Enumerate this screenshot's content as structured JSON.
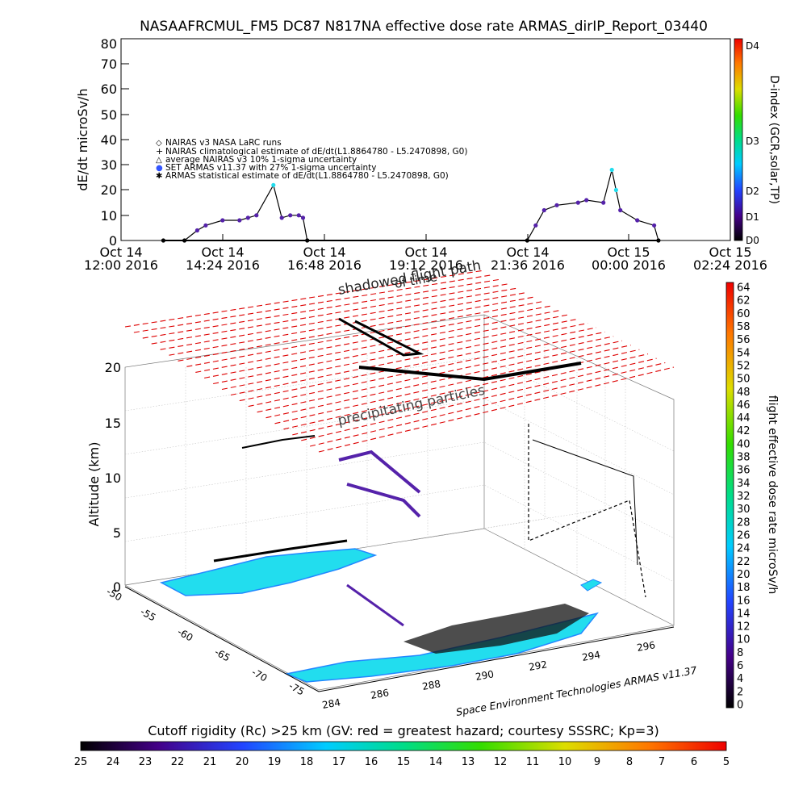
{
  "chart_data": [
    {
      "type": "line",
      "title": "NASAAFRCMUL_FM5 DC87 N817NA effective dose rate ARMAS_dirIP_Report_03440",
      "ylabel": "dE/dt microSv/h",
      "ylim": [
        0,
        80
      ],
      "y_ticks": [
        "0",
        "10",
        "20",
        "30",
        "40",
        "50",
        "60",
        "70",
        "80"
      ],
      "x_ticks": [
        {
          "l1": "Oct 14",
          "l2": "12:00 2016"
        },
        {
          "l1": "Oct 14",
          "l2": "14:24 2016"
        },
        {
          "l1": "Oct 14",
          "l2": "16:48 2016"
        },
        {
          "l1": "Oct 14",
          "l2": "19:12 2016"
        },
        {
          "l1": "Oct 14",
          "l2": "21:36 2016"
        },
        {
          "l1": "Oct 15",
          "l2": "00:00 2016"
        },
        {
          "l1": "Oct 15",
          "l2": "02:24 2016"
        }
      ],
      "legend": [
        {
          "symbol": "◇",
          "text": "NAIRAS v3 NASA LaRC runs",
          "color": "#000000"
        },
        {
          "symbol": "+",
          "text": "NAIRAS climatological estimate of dE/dt(L1.8864780 - L5.2470898, G0)",
          "color": "#000000"
        },
        {
          "symbol": "△",
          "text": "average NAIRAS v3 10% 1-sigma uncertainty",
          "color": "#000000"
        },
        {
          "symbol": "●",
          "text": "SET ARMAS v11.37 with 27% 1-sigma uncertainty",
          "color": "#3355ff"
        },
        {
          "symbol": "✱",
          "text": "ARMAS statistical estimate of dE/dt(L1.8864780 - L5.2470898, G0)",
          "color": "#000000"
        }
      ],
      "right_axis": {
        "label": "D-index (GCR,solar,TP)",
        "ticks": [
          "D0",
          "D1",
          "D2",
          "D3",
          "D4"
        ]
      },
      "series": [
        {
          "name": "ARMAS",
          "x_hours": [
            13.0,
            13.5,
            13.8,
            14.0,
            14.4,
            14.8,
            15.0,
            15.2,
            15.6,
            15.8,
            16.0,
            16.2,
            16.3,
            16.4,
            21.6,
            21.8,
            22.0,
            22.3,
            22.8,
            23.0,
            23.4,
            23.6,
            23.7,
            23.8,
            24.2,
            24.6,
            24.7
          ],
          "values": [
            0,
            0,
            4,
            6,
            8,
            8,
            9,
            10,
            22,
            9,
            10,
            10,
            9,
            0,
            0,
            6,
            12,
            14,
            15,
            16,
            15,
            28,
            20,
            12,
            8,
            6,
            0
          ]
        }
      ]
    },
    {
      "type": "scatter",
      "title": "",
      "ylabel": "Altitude (km)",
      "z_ticks": [
        "0",
        "5",
        "10",
        "15",
        "20"
      ],
      "lat_ticks": [
        "-50",
        "-55",
        "-60",
        "-65",
        "-70",
        "-75"
      ],
      "lon_ticks": [
        "284",
        "286",
        "288",
        "290",
        "292",
        "294",
        "296"
      ],
      "annotations": [
        "shadowed flight path",
        "of time",
        "precipitating particles"
      ],
      "colorbar": {
        "label": "flight effective dose rate microSv/h",
        "ticks": [
          "0",
          "2",
          "4",
          "6",
          "8",
          "10",
          "12",
          "14",
          "16",
          "18",
          "20",
          "22",
          "24",
          "26",
          "28",
          "30",
          "32",
          "34",
          "36",
          "38",
          "40",
          "42",
          "44",
          "46",
          "48",
          "50",
          "52",
          "54",
          "56",
          "58",
          "60",
          "62",
          "64"
        ]
      }
    }
  ],
  "credit": "Space Environment Technologies ARMAS v11.37",
  "cutoff": {
    "label": "Cutoff rigidity (Rc) >25 km (GV: red = greatest hazard; courtesy SSSRC; Kp=3)",
    "ticks": [
      "25",
      "24",
      "23",
      "22",
      "21",
      "20",
      "19",
      "18",
      "17",
      "16",
      "15",
      "14",
      "13",
      "12",
      "11",
      "10",
      "9",
      "8",
      "7",
      "6",
      "5"
    ]
  },
  "colors": {
    "flight_red": "#dd0000",
    "armas_cyan": "#22ddee",
    "armas_blue": "#2288ff",
    "armas_purple": "#5522aa"
  }
}
